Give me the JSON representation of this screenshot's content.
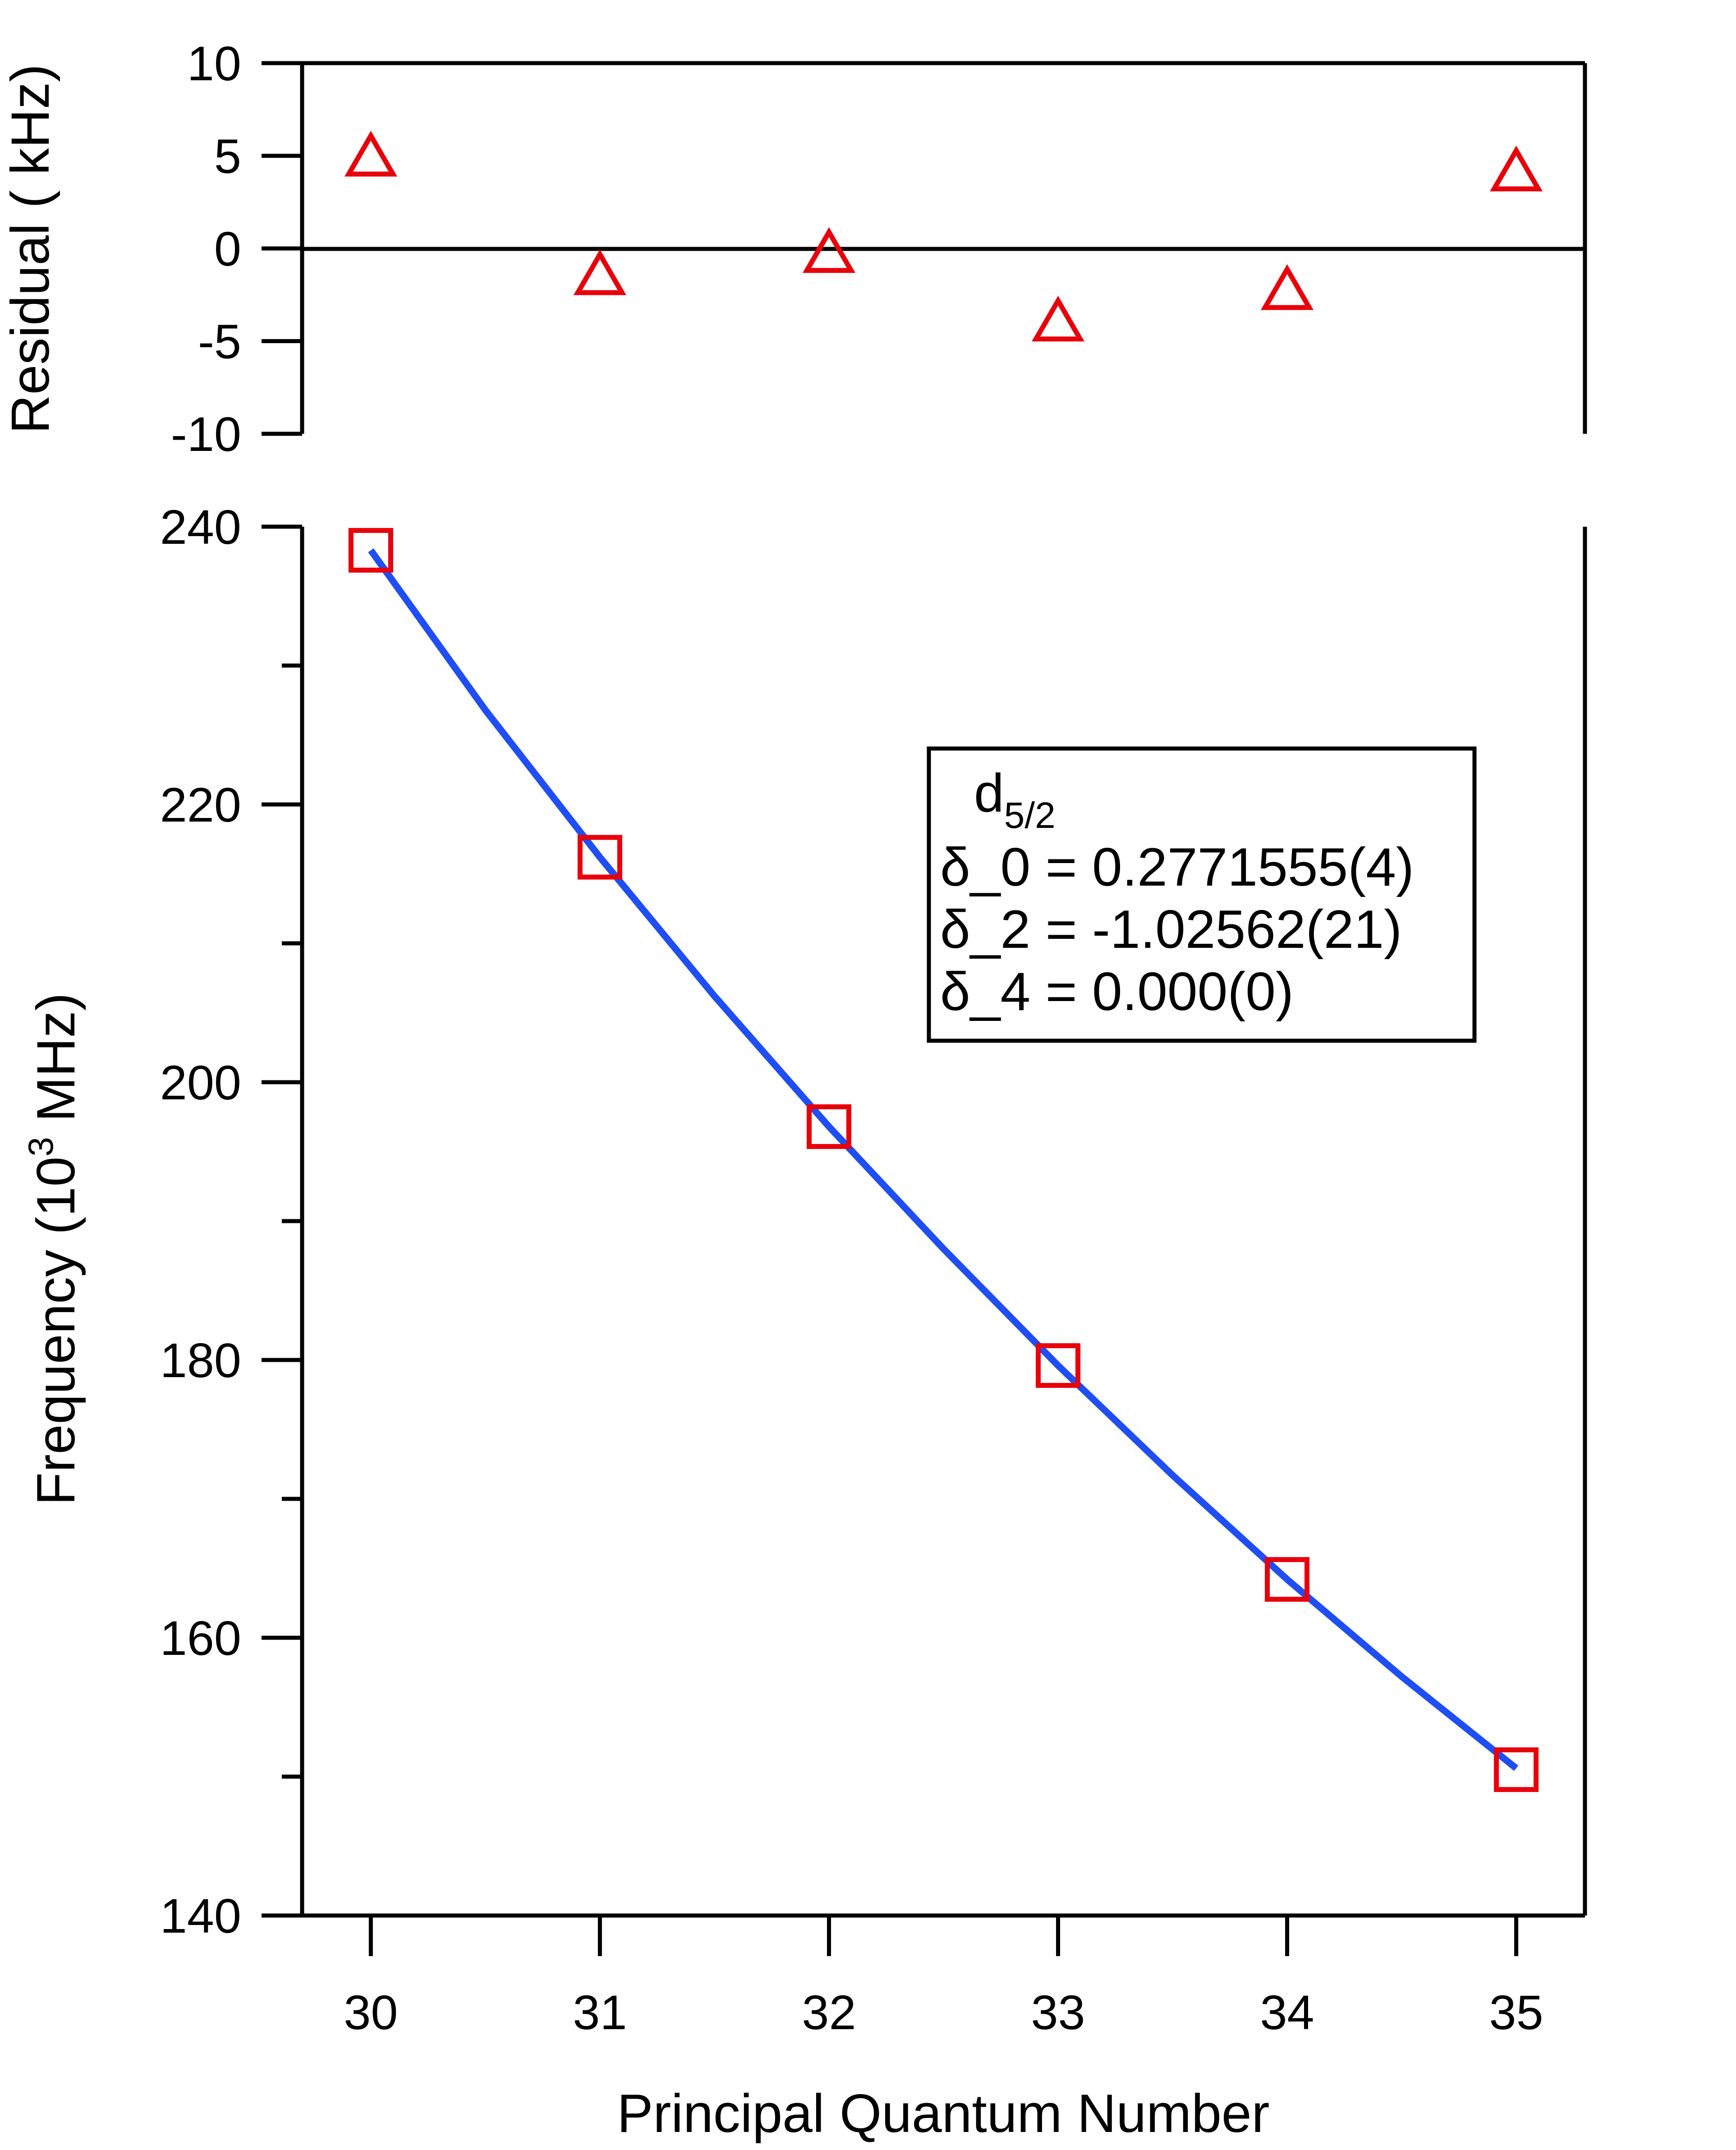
{
  "chart_data": [
    {
      "type": "scatter",
      "panel": "residual",
      "ylabel": "Residual ( kHz)",
      "ylim": [
        -10,
        10
      ],
      "yticks": [
        10,
        5,
        0,
        -5,
        -10
      ],
      "ytick_labels": [
        "10",
        "5",
        "0",
        "-5",
        "-10"
      ],
      "zero_line": true,
      "series": [
        {
          "marker": "triangle",
          "color": "#e8000b",
          "x": [
            30,
            31,
            32,
            33,
            34,
            35
          ],
          "y": [
            4.8,
            -1.6,
            -0.4,
            -4.1,
            -2.4,
            4.0
          ]
        }
      ]
    },
    {
      "type": "scatter",
      "panel": "main",
      "xlabel": "Principal Quantum Number",
      "ylabel_main": "Frequency (10",
      "ylabel_sup": "3",
      "ylabel_tail": " MHz)",
      "xlim": [
        29.7,
        35.3
      ],
      "ylim": [
        140,
        240
      ],
      "xticks": [
        30,
        31,
        32,
        33,
        34,
        35
      ],
      "xtick_labels": [
        "30",
        "31",
        "32",
        "33",
        "34",
        "35"
      ],
      "yticks": [
        240,
        220,
        200,
        180,
        160,
        140
      ],
      "ytick_labels": [
        "240",
        "220",
        "200",
        "180",
        "160",
        "140"
      ],
      "series": [
        {
          "marker": "square",
          "color": "#e8000b",
          "x": [
            30,
            31,
            32,
            33,
            34,
            35
          ],
          "y": [
            238.3,
            216.2,
            196.8,
            179.6,
            164.2,
            150.5
          ]
        },
        {
          "marker": "line",
          "color": "#1f4ef5",
          "x": [
            30,
            30.5,
            31,
            31.5,
            32,
            32.5,
            33,
            33.5,
            34,
            34.5,
            35
          ],
          "y": [
            238.3,
            226.8,
            216.2,
            206.2,
            196.8,
            188.0,
            179.6,
            171.7,
            164.2,
            157.2,
            150.6
          ]
        }
      ],
      "legend": {
        "placement": "upper-right",
        "title_main": "d",
        "title_sub": "5/2",
        "lines": [
          "δ_0 = 0.2771555(4)",
          "δ_2 = -1.02562(21)",
          "δ_4 = 0.000(0)"
        ]
      }
    }
  ]
}
